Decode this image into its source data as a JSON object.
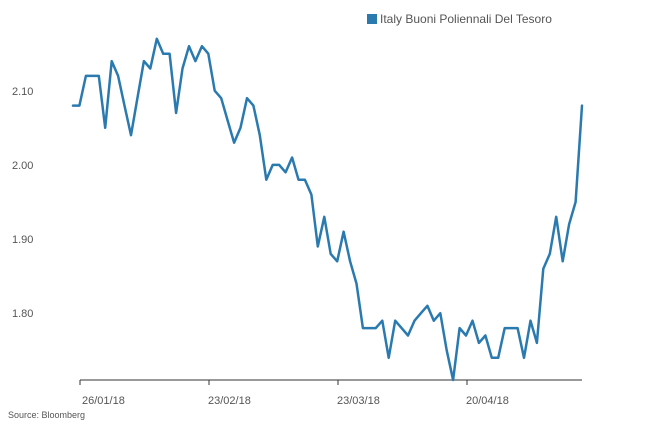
{
  "legend": {
    "label": "Italy Buoni Poliennali Del Tesoro",
    "color": "#2a7ab0"
  },
  "source": "Source: Bloomberg",
  "chart_data": {
    "type": "line",
    "title": "",
    "xlabel": "",
    "ylabel": "",
    "ylim": [
      1.71,
      2.19
    ],
    "y_ticks": [
      "1.80",
      "1.90",
      "2.00",
      "2.10"
    ],
    "x_ticks": [
      "26/01/18",
      "23/02/18",
      "23/03/18",
      "20/04/18"
    ],
    "grid": false,
    "legend_position": "top-right",
    "series": [
      {
        "name": "Italy Buoni Poliennali Del Tesoro",
        "color": "#2a7ab0",
        "values": [
          2.08,
          2.08,
          2.12,
          2.12,
          2.12,
          2.05,
          2.14,
          2.12,
          2.08,
          2.04,
          2.09,
          2.14,
          2.13,
          2.17,
          2.15,
          2.15,
          2.07,
          2.13,
          2.16,
          2.14,
          2.16,
          2.15,
          2.1,
          2.09,
          2.06,
          2.03,
          2.05,
          2.09,
          2.08,
          2.04,
          1.98,
          2.0,
          2.0,
          1.99,
          2.01,
          1.98,
          1.98,
          1.96,
          1.89,
          1.93,
          1.88,
          1.87,
          1.91,
          1.87,
          1.84,
          1.78,
          1.78,
          1.78,
          1.79,
          1.74,
          1.79,
          1.78,
          1.77,
          1.79,
          1.8,
          1.81,
          1.79,
          1.8,
          1.75,
          1.71,
          1.78,
          1.77,
          1.79,
          1.76,
          1.77,
          1.74,
          1.74,
          1.78,
          1.78,
          1.78,
          1.74,
          1.79,
          1.76,
          1.86,
          1.88,
          1.93,
          1.87,
          1.92,
          1.95,
          2.08
        ]
      }
    ]
  }
}
